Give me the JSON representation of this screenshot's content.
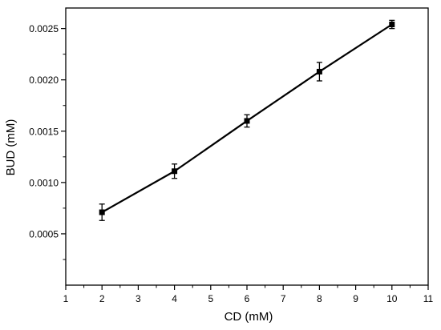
{
  "chart_data": {
    "type": "line",
    "xlabel": "CD (mM)",
    "ylabel": "BUD (mM)",
    "xlim": [
      1,
      11
    ],
    "ylim": [
      0.0,
      0.0027
    ],
    "x_ticks": [
      "1",
      "2",
      "3",
      "4",
      "5",
      "6",
      "7",
      "8",
      "9",
      "10",
      "11"
    ],
    "y_ticks": [
      "0.0005",
      "0.0010",
      "0.0015",
      "0.0020",
      "0.0025"
    ],
    "y_tick_values": [
      0.0005,
      0.001,
      0.0015,
      0.002,
      0.0025
    ],
    "grid": false,
    "marker": "square",
    "series": [
      {
        "x": [
          2,
          4,
          6,
          8,
          10
        ],
        "y": [
          0.00071,
          0.00111,
          0.0016,
          0.00208,
          0.00254
        ],
        "error": [
          8e-05,
          7e-05,
          6e-05,
          9e-05,
          4e-05
        ]
      }
    ],
    "colors": {
      "line": "#000000",
      "axis": "#000000",
      "background": "#ffffff"
    }
  }
}
